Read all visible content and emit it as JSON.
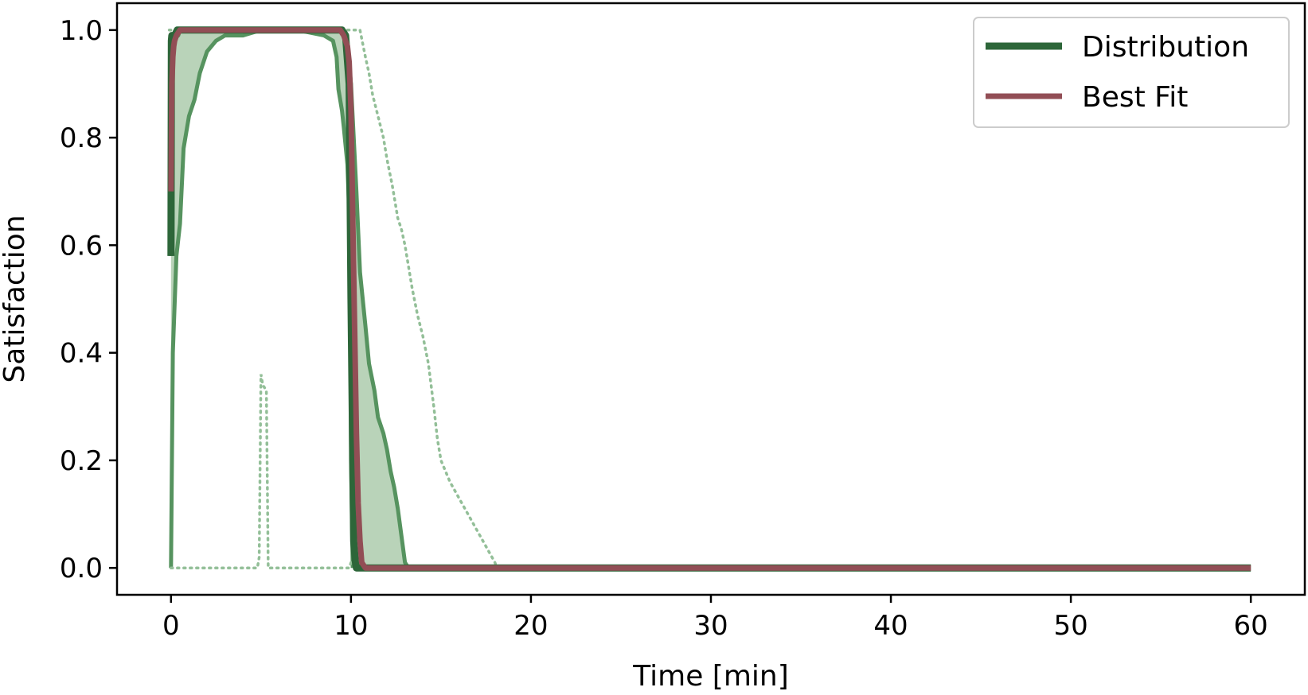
{
  "chart_data": {
    "type": "line",
    "xlabel": "Time [min]",
    "ylabel": "Satisfaction",
    "xlim": [
      -3,
      63
    ],
    "ylim": [
      -0.05,
      1.05
    ],
    "xticks": [
      0,
      10,
      20,
      30,
      40,
      50,
      60
    ],
    "xtick_labels": [
      "0",
      "10",
      "20",
      "30",
      "40",
      "50",
      "60"
    ],
    "yticks": [
      0.0,
      0.2,
      0.4,
      0.6,
      0.8,
      1.0
    ],
    "ytick_labels": [
      "0.0",
      "0.2",
      "0.4",
      "0.6",
      "0.8",
      "1.0"
    ],
    "grid": false,
    "legend": {
      "position": "top-right",
      "entries": [
        {
          "label": "Distribution",
          "color": "#2d6639"
        },
        {
          "label": "Best Fit",
          "color": "#924e55"
        }
      ]
    },
    "band": {
      "color": "#b9d3b9",
      "upper": [
        [
          0,
          0.58
        ],
        [
          0.05,
          0.98
        ],
        [
          0.4,
          0.99
        ],
        [
          0.5,
          1.0
        ],
        [
          9.5,
          1.0
        ],
        [
          9.7,
          0.99
        ],
        [
          9.8,
          0.97
        ],
        [
          10.0,
          0.9
        ],
        [
          10.3,
          0.7
        ],
        [
          10.5,
          0.55
        ],
        [
          10.8,
          0.45
        ],
        [
          11.0,
          0.38
        ],
        [
          11.3,
          0.33
        ],
        [
          11.5,
          0.28
        ],
        [
          11.8,
          0.25
        ],
        [
          12.0,
          0.22
        ],
        [
          12.2,
          0.18
        ],
        [
          12.4,
          0.15
        ],
        [
          12.6,
          0.11
        ],
        [
          12.8,
          0.06
        ],
        [
          13.0,
          0.01
        ],
        [
          13.2,
          0.0
        ]
      ],
      "lower": [
        [
          0,
          0.0
        ],
        [
          0.1,
          0.4
        ],
        [
          0.3,
          0.58
        ],
        [
          0.5,
          0.64
        ],
        [
          0.7,
          0.78
        ],
        [
          1.0,
          0.84
        ],
        [
          1.3,
          0.87
        ],
        [
          1.6,
          0.92
        ],
        [
          2.0,
          0.96
        ],
        [
          2.5,
          0.98
        ],
        [
          3.0,
          0.99
        ],
        [
          4.0,
          0.99
        ],
        [
          5.0,
          1.0
        ],
        [
          7.0,
          1.0
        ],
        [
          8.5,
          0.99
        ],
        [
          9.0,
          0.98
        ],
        [
          9.2,
          0.95
        ],
        [
          9.3,
          0.89
        ],
        [
          9.5,
          0.85
        ],
        [
          9.6,
          0.82
        ],
        [
          9.8,
          0.75
        ],
        [
          9.95,
          0.62
        ],
        [
          10.0,
          0.2
        ],
        [
          10.1,
          0.0
        ]
      ]
    },
    "dotted_max": [
      [
        -0.1,
        1.0
      ],
      [
        10.5,
        1.0
      ],
      [
        10.8,
        0.95
      ],
      [
        11.0,
        0.92
      ],
      [
        11.2,
        0.88
      ],
      [
        11.5,
        0.84
      ],
      [
        11.8,
        0.8
      ],
      [
        12.0,
        0.76
      ],
      [
        12.3,
        0.71
      ],
      [
        12.6,
        0.65
      ],
      [
        12.8,
        0.63
      ],
      [
        13.0,
        0.6
      ],
      [
        13.2,
        0.56
      ],
      [
        13.4,
        0.52
      ],
      [
        13.7,
        0.47
      ],
      [
        14.0,
        0.43
      ],
      [
        14.3,
        0.38
      ],
      [
        14.6,
        0.3
      ],
      [
        14.8,
        0.24
      ],
      [
        15.0,
        0.2
      ],
      [
        15.5,
        0.16
      ],
      [
        16.0,
        0.13
      ],
      [
        16.5,
        0.1
      ],
      [
        17.0,
        0.07
      ],
      [
        17.5,
        0.04
      ],
      [
        18.0,
        0.01
      ],
      [
        18.1,
        0.0
      ]
    ],
    "dotted_min": [
      [
        0,
        0.0
      ],
      [
        4.8,
        0.0
      ],
      [
        4.9,
        0.02
      ],
      [
        5.0,
        0.36
      ],
      [
        5.1,
        0.34
      ],
      [
        5.3,
        0.33
      ],
      [
        5.4,
        0.0
      ],
      [
        9.9,
        0.0
      ],
      [
        10.0,
        0.01
      ],
      [
        10.5,
        0.0
      ]
    ],
    "series": [
      {
        "name": "Distribution",
        "color": "#2d6639",
        "x": [
          0,
          0.02,
          0.05,
          0.2,
          0.35,
          0.5,
          9.5,
          9.7,
          9.9,
          10.0,
          10.15,
          10.25,
          10.3,
          60
        ],
        "values": [
          0.58,
          0.98,
          0.99,
          0.99,
          1.0,
          1.0,
          1.0,
          0.99,
          0.9,
          0.5,
          0.05,
          0.01,
          0.0,
          0.0
        ]
      },
      {
        "name": "Best Fit",
        "color": "#924e55",
        "x": [
          0,
          0.02,
          0.05,
          0.1,
          0.15,
          0.2,
          0.3,
          0.5,
          1.0,
          9.4,
          9.6,
          9.8,
          9.9,
          10.0,
          10.1,
          10.2,
          10.3,
          10.4,
          10.5,
          10.6,
          10.8,
          60
        ],
        "values": [
          0.7,
          0.8,
          0.9,
          0.95,
          0.97,
          0.98,
          0.99,
          1.0,
          1.0,
          1.0,
          0.99,
          0.97,
          0.94,
          0.85,
          0.65,
          0.45,
          0.25,
          0.12,
          0.05,
          0.01,
          0.0,
          0.0
        ]
      }
    ]
  }
}
